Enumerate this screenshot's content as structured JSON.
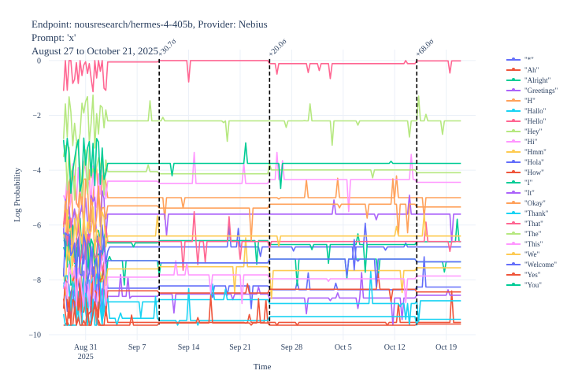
{
  "title": {
    "line1": "Endpoint: nousresearch/hermes-4-405b, Provider: Nebius",
    "line2": "Prompt: 'x'",
    "line3": "August 27 to October 21, 2025"
  },
  "chart_data": {
    "type": "line",
    "xlabel": "Time",
    "ylabel": "Log Probability",
    "xlim": [
      "2025-08-26",
      "2025-10-23"
    ],
    "ylim": [
      -10.2,
      0.4
    ],
    "grid": true,
    "legend_position": "right",
    "y_ticks": [
      0,
      -2,
      -4,
      -6,
      -8,
      -10
    ],
    "y_tick_labels": [
      "0",
      "−2",
      "−4",
      "−6",
      "−8",
      "−10"
    ],
    "x_ticks": [
      {
        "date": "2025-08-31",
        "label": "Aug 31",
        "sublabel": "2025"
      },
      {
        "date": "2025-09-07",
        "label": "Sep 7",
        "sublabel": ""
      },
      {
        "date": "2025-09-14",
        "label": "Sep 14",
        "sublabel": ""
      },
      {
        "date": "2025-09-21",
        "label": "Sep 21",
        "sublabel": ""
      },
      {
        "date": "2025-09-28",
        "label": "Sep 28",
        "sublabel": ""
      },
      {
        "date": "2025-10-05",
        "label": "Oct 5",
        "sublabel": ""
      },
      {
        "date": "2025-10-12",
        "label": "Oct 12",
        "sublabel": ""
      },
      {
        "date": "2025-10-19",
        "label": "Oct 19",
        "sublabel": ""
      }
    ],
    "annotations": [
      {
        "date": "2025-09-10",
        "label": "+30.7σ"
      },
      {
        "date": "2025-09-25",
        "label": "+20.0σ"
      },
      {
        "date": "2025-10-15",
        "label": "+68.0σ"
      }
    ],
    "series": [
      {
        "name": "\"*\"",
        "color": "#636efa",
        "level": -8.3
      },
      {
        "name": "\"Ah\"",
        "color": "#ef553b",
        "level": -9.55
      },
      {
        "name": "\"Alright\"",
        "color": "#00cc96",
        "level": -7.3
      },
      {
        "name": "\"Greetings\"",
        "color": "#ab63fa",
        "level": -8.6
      },
      {
        "name": "\"H\"",
        "color": "#ffa15a",
        "level": -5.0
      },
      {
        "name": "\"Hallo\"",
        "color": "#19d3f3",
        "level": -9.4
      },
      {
        "name": "\"Hello\"",
        "color": "#ff6692",
        "level": -0.05
      },
      {
        "name": "\"Hey\"",
        "color": "#b6e880",
        "level": -2.2
      },
      {
        "name": "\"Hi\"",
        "color": "#ff97ff",
        "level": -4.4
      },
      {
        "name": "\"Hmm\"",
        "color": "#fecb52",
        "level": -7.6
      },
      {
        "name": "\"Hola\"",
        "color": "#636efa",
        "level": -6.8
      },
      {
        "name": "\"How\"",
        "color": "#ef553b",
        "level": -8.4
      },
      {
        "name": "\"I\"",
        "color": "#00cc96",
        "level": -6.65
      },
      {
        "name": "\"It\"",
        "color": "#ab63fa",
        "level": -5.6
      },
      {
        "name": "\"Okay\"",
        "color": "#ffa15a",
        "level": -5.3
      },
      {
        "name": "\"Thank\"",
        "color": "#19d3f3",
        "level": -8.8
      },
      {
        "name": "\"That\"",
        "color": "#ff6692",
        "level": -6.6
      },
      {
        "name": "\"The\"",
        "color": "#b6e880",
        "level": -4.05
      },
      {
        "name": "\"This\"",
        "color": "#ff97ff",
        "level": -7.9
      },
      {
        "name": "\"We\"",
        "color": "#fecb52",
        "level": -6.4
      },
      {
        "name": "\"Welcome\"",
        "color": "#636efa",
        "level": -7.3
      },
      {
        "name": "\"Yes\"",
        "color": "#ef553b",
        "level": -9.65
      },
      {
        "name": "\"You\"",
        "color": "#00cc96",
        "level": -3.75
      }
    ]
  }
}
